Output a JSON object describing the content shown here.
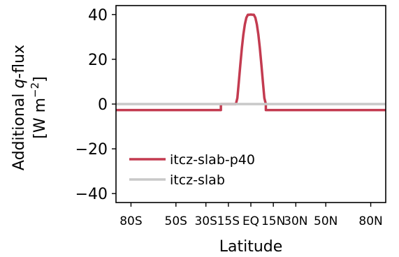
{
  "chart_data": {
    "type": "line",
    "title": "",
    "xlabel": "Latitude",
    "ylabel_line1": "Additional q-flux",
    "ylabel_line1_prefix": "Additional ",
    "ylabel_line1_italic": "q",
    "ylabel_line1_suffix": "-flux",
    "ylabel_line2_prefix": "[W m",
    "ylabel_line2_sup": "−2",
    "ylabel_line2_suffix": "]",
    "xlim": [
      -90,
      90
    ],
    "ylim": [
      -44,
      44
    ],
    "grid": false,
    "legend_position": "lower-left",
    "x_ticks": [
      {
        "value": -80,
        "label": "80S"
      },
      {
        "value": -50,
        "label": "50S"
      },
      {
        "value": -30,
        "label": "30S"
      },
      {
        "value": -15,
        "label": "15S"
      },
      {
        "value": 0,
        "label": "EQ"
      },
      {
        "value": 15,
        "label": "15N"
      },
      {
        "value": 30,
        "label": "30N"
      },
      {
        "value": 50,
        "label": "50N"
      },
      {
        "value": 80,
        "label": "80N"
      }
    ],
    "y_ticks": [
      {
        "value": 40,
        "label": "40"
      },
      {
        "value": 20,
        "label": "20"
      },
      {
        "value": 0,
        "label": "0"
      },
      {
        "value": -20,
        "label": "−20"
      },
      {
        "value": -40,
        "label": "−40"
      }
    ],
    "series": [
      {
        "name": "itcz-slab-p40",
        "color": "#c33b50",
        "x": [
          -90,
          -20,
          -20,
          -10,
          -9,
          -8,
          -7,
          -6,
          -5,
          -4,
          -3,
          -2,
          -1,
          0,
          1,
          2,
          3,
          4,
          5,
          6,
          7,
          8,
          9,
          10,
          10,
          90
        ],
        "y": [
          -2.7,
          -2.7,
          0,
          0,
          2.7,
          10.1,
          17.8,
          25.0,
          31.1,
          35.6,
          38.6,
          39.9,
          39.9,
          40,
          39.9,
          39.9,
          38.6,
          35.6,
          31.1,
          25.0,
          17.8,
          10.1,
          2.7,
          0,
          -2.7,
          -2.7
        ]
      },
      {
        "name": "itcz-slab",
        "color": "#c8c8c8",
        "x": [
          -90,
          90
        ],
        "y": [
          0,
          0
        ]
      }
    ]
  }
}
